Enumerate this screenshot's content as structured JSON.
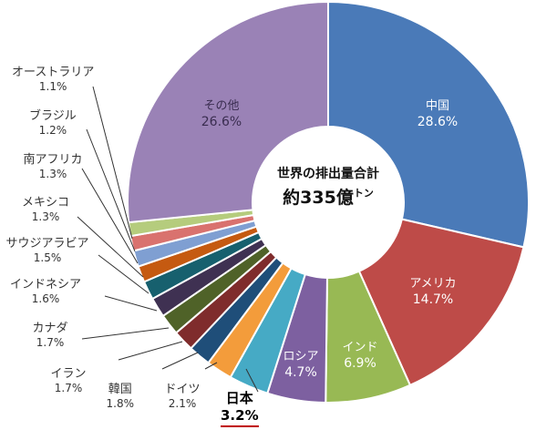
{
  "chart_data": {
    "type": "pie",
    "donut": true,
    "center_title": "世界の排出量合計",
    "center_total": "約335億",
    "center_unit": "トン",
    "slices": [
      {
        "label": "中国",
        "value": 28.6,
        "display": "28.6%",
        "color": "#4a7ab8",
        "label_pos": "inside"
      },
      {
        "label": "アメリカ",
        "value": 14.7,
        "display": "14.7%",
        "color": "#be4b48",
        "label_pos": "inside"
      },
      {
        "label": "インド",
        "value": 6.9,
        "display": "6.9%",
        "color": "#98b954",
        "label_pos": "inside"
      },
      {
        "label": "ロシア",
        "value": 4.7,
        "display": "4.7%",
        "color": "#7d60a0",
        "label_pos": "inside"
      },
      {
        "label": "日本",
        "value": 3.2,
        "display": "3.2%",
        "color": "#46aac5",
        "label_pos": "outside",
        "emphasis": true
      },
      {
        "label": "ドイツ",
        "value": 2.1,
        "display": "2.1%",
        "color": "#f39c3b",
        "label_pos": "outside"
      },
      {
        "label": "韓国",
        "value": 1.8,
        "display": "1.8%",
        "color": "#1f4e79",
        "label_pos": "outside"
      },
      {
        "label": "イラン",
        "value": 1.7,
        "display": "1.7%",
        "color": "#7f2c2c",
        "label_pos": "outside"
      },
      {
        "label": "カナダ",
        "value": 1.7,
        "display": "1.7%",
        "color": "#4f6228",
        "label_pos": "outside"
      },
      {
        "label": "インドネシア",
        "value": 1.6,
        "display": "1.6%",
        "color": "#3f3152",
        "label_pos": "outside"
      },
      {
        "label": "サウジアラビア",
        "value": 1.5,
        "display": "1.5%",
        "color": "#17606e",
        "label_pos": "outside"
      },
      {
        "label": "メキシコ",
        "value": 1.3,
        "display": "1.3%",
        "color": "#c55a11",
        "label_pos": "outside"
      },
      {
        "label": "南アフリカ",
        "value": 1.3,
        "display": "1.3%",
        "color": "#7f9fd2",
        "label_pos": "outside"
      },
      {
        "label": "ブラジル",
        "value": 1.2,
        "display": "1.2%",
        "color": "#d9726e",
        "label_pos": "outside"
      },
      {
        "label": "オーストラリア",
        "value": 1.1,
        "display": "1.1%",
        "color": "#b5cc7d",
        "label_pos": "outside"
      },
      {
        "label": "その他",
        "value": 26.6,
        "display": "26.6%",
        "color": "#9a82b6",
        "label_pos": "inside"
      }
    ]
  }
}
